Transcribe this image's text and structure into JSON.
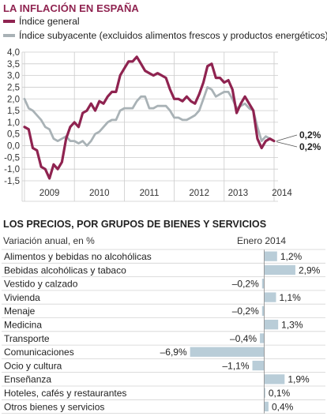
{
  "colors": {
    "general": "#8f2350",
    "subyacente": "#a9b2b6",
    "bars": "#b9cdd8",
    "grid": "#cccccc"
  },
  "header": {
    "title": "LA INFLACIÓN EN ESPAÑA",
    "legend_general": "Índice general",
    "legend_subyacente": "Índice subyacente (excluidos alimentos frescos y productos energéticos)"
  },
  "section2": {
    "title": "LOS PRECIOS, POR GRUPOS DE BIENES Y SERVICIOS",
    "subtitle": "Variación anual, en %",
    "period": "Enero 2014"
  },
  "chart_data": [
    {
      "type": "line",
      "title": "LA INFLACIÓN EN ESPAÑA",
      "ylim": [
        -1.5,
        4.0
      ],
      "yticks": [
        "4,0",
        "3,5",
        "3,0",
        "2,5",
        "2,0",
        "1,5",
        "1,0",
        "0,5",
        "0,0",
        "-0,5",
        "-1,0",
        "-1,5"
      ],
      "xticks": [
        "2009",
        "2010",
        "2011",
        "2012",
        "2013",
        "2014"
      ],
      "grid": true,
      "series": [
        {
          "name": "Índice general",
          "end_label": "0,2%",
          "values": [
            0.8,
            0.7,
            -0.1,
            -0.2,
            -0.9,
            -1.0,
            -1.4,
            -0.8,
            -1.0,
            -0.7,
            0.3,
            0.8,
            1.0,
            0.8,
            1.4,
            1.5,
            1.8,
            1.5,
            1.9,
            1.8,
            2.1,
            2.3,
            2.3,
            3.0,
            3.3,
            3.6,
            3.6,
            3.8,
            3.5,
            3.2,
            3.1,
            3.0,
            3.1,
            3.0,
            2.9,
            2.4,
            2.0,
            2.0,
            1.9,
            2.1,
            1.9,
            1.8,
            2.2,
            2.7,
            3.4,
            3.5,
            2.9,
            2.9,
            2.7,
            2.8,
            2.4,
            1.4,
            1.8,
            2.1,
            1.8,
            1.5,
            0.3,
            -0.1,
            0.2,
            0.3,
            0.2
          ]
        },
        {
          "name": "Índice subyacente",
          "end_label": "0,2%",
          "values": [
            2.0,
            1.6,
            1.5,
            1.3,
            1.1,
            0.8,
            0.7,
            0.3,
            0.2,
            0.3,
            0.4,
            0.2,
            0.2,
            0.1,
            0.2,
            0.0,
            0.2,
            0.5,
            0.6,
            0.8,
            1.0,
            1.1,
            1.1,
            1.5,
            1.6,
            1.6,
            1.6,
            1.9,
            2.1,
            2.1,
            1.6,
            1.6,
            1.7,
            1.7,
            1.7,
            1.5,
            1.2,
            1.2,
            1.1,
            1.1,
            1.2,
            1.3,
            1.5,
            2.0,
            2.5,
            2.4,
            2.1,
            2.2,
            2.3,
            2.3,
            2.0,
            1.6,
            1.7,
            1.8,
            1.6,
            1.5,
            0.8,
            0.2,
            0.4,
            0.3,
            0.2
          ]
        }
      ]
    },
    {
      "type": "bar",
      "title": "LOS PRECIOS, POR GRUPOS DE BIENES Y SERVICIOS",
      "ylabel": "Variación anual, en %",
      "series_label": "Enero 2014",
      "categories": [
        "Alimentos y bebidas no alcohólicas",
        "Bebidas alcohólicas y tabaco",
        "Vestido y calzado",
        "Vivienda",
        "Menaje",
        "Medicina",
        "Transporte",
        "Comunicaciones",
        "Ocio y cultura",
        "Enseñanza",
        "Hoteles, cafés y restaurantes",
        "Otros bienes y servicios"
      ],
      "values": [
        1.2,
        2.9,
        -0.2,
        1.1,
        -0.2,
        1.3,
        -0.4,
        -6.9,
        -1.1,
        1.9,
        0.1,
        0.4
      ],
      "value_labels": [
        "1,2%",
        "2,9%",
        "–0,2%",
        "1,1%",
        "–0,2%",
        "1,3%",
        "–0,4%",
        "–6,9%",
        "–1,1%",
        "1,9%",
        "0,1%",
        "0,4%"
      ]
    }
  ]
}
